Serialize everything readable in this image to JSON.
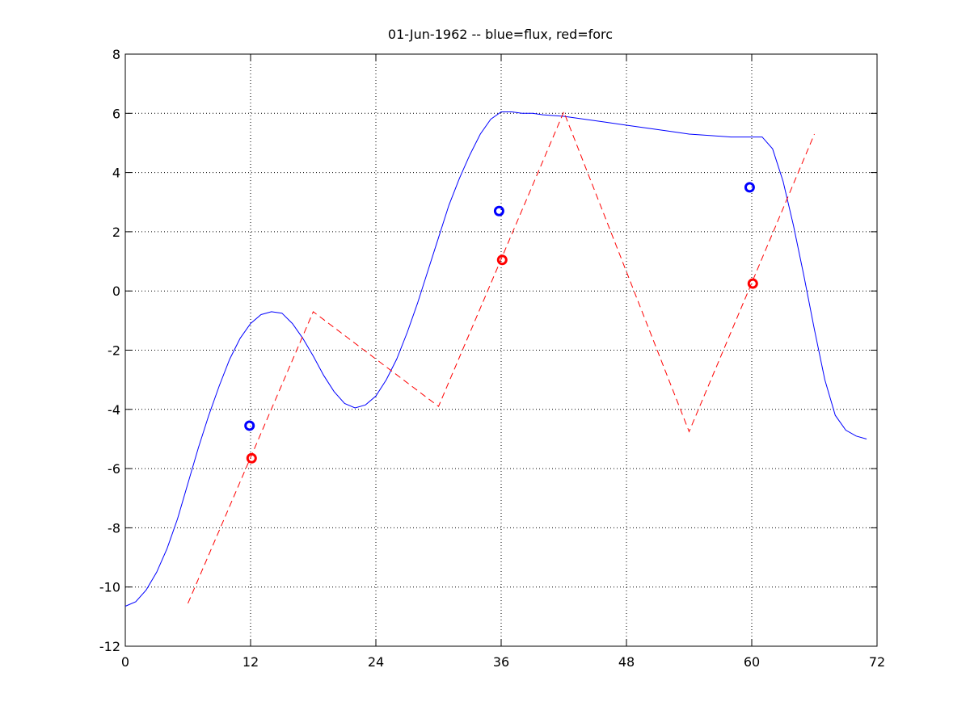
{
  "chart_data": {
    "type": "line",
    "title": "01-Jun-1962 -- blue=flux, red=forc",
    "xlabel": "",
    "ylabel": "",
    "xlim": [
      0,
      72
    ],
    "ylim": [
      -12,
      8
    ],
    "xticks": [
      0,
      12,
      24,
      36,
      48,
      60,
      72
    ],
    "yticks": [
      -12,
      -10,
      -8,
      -6,
      -4,
      -2,
      0,
      2,
      4,
      6,
      8
    ],
    "grid": true,
    "series": [
      {
        "color": "#0000ff",
        "style": "solid",
        "x": [
          0,
          1,
          2,
          3,
          4,
          5,
          6,
          7,
          8,
          9,
          10,
          11,
          12,
          13,
          14,
          15,
          16,
          17,
          18,
          19,
          20,
          21,
          22,
          23,
          24,
          25,
          26,
          27,
          28,
          29,
          30,
          31,
          32,
          33,
          34,
          35,
          36,
          37,
          38,
          39,
          40,
          42,
          44,
          46,
          48,
          50,
          52,
          54,
          56,
          58,
          60,
          61,
          62,
          63,
          64,
          65,
          66,
          67,
          68,
          69,
          70,
          71
        ],
        "y": [
          -10.65,
          -10.5,
          -10.1,
          -9.5,
          -8.7,
          -7.7,
          -6.5,
          -5.3,
          -4.2,
          -3.2,
          -2.3,
          -1.6,
          -1.1,
          -0.8,
          -0.7,
          -0.75,
          -1.1,
          -1.6,
          -2.2,
          -2.85,
          -3.4,
          -3.8,
          -3.95,
          -3.85,
          -3.55,
          -3.0,
          -2.3,
          -1.4,
          -0.4,
          0.7,
          1.8,
          2.9,
          3.8,
          4.6,
          5.3,
          5.8,
          6.05,
          6.05,
          6.0,
          6.0,
          5.95,
          5.9,
          5.8,
          5.7,
          5.6,
          5.5,
          5.4,
          5.3,
          5.25,
          5.2,
          5.2,
          5.2,
          4.8,
          3.7,
          2.2,
          0.5,
          -1.3,
          -3.0,
          -4.2,
          -4.7,
          -4.9,
          -5.0
        ]
      },
      {
        "color": "#ff0000",
        "style": "dashed",
        "x": [
          6,
          18,
          30,
          42,
          54,
          66
        ],
        "y": [
          -10.55,
          -0.7,
          -3.9,
          6.05,
          -4.75,
          5.3
        ]
      }
    ],
    "markers": [
      {
        "x": 11.9,
        "y": -4.55,
        "color": "#0000ff"
      },
      {
        "x": 12.1,
        "y": -5.65,
        "color": "#ff0000"
      },
      {
        "x": 35.8,
        "y": 2.7,
        "color": "#0000ff"
      },
      {
        "x": 36.1,
        "y": 1.05,
        "color": "#ff0000"
      },
      {
        "x": 59.8,
        "y": 3.5,
        "color": "#0000ff"
      },
      {
        "x": 60.1,
        "y": 0.25,
        "color": "#ff0000"
      }
    ]
  }
}
